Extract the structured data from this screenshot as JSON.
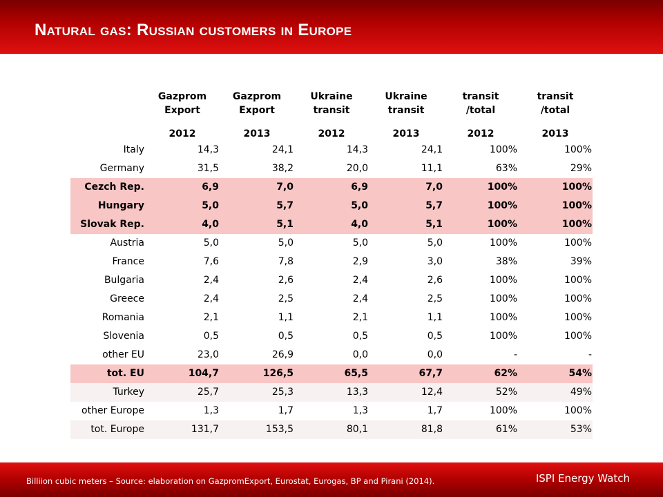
{
  "title": "Natural gas: Russian customers in Europe",
  "table": {
    "headers": [
      "Gazprom\nExport",
      "Gazprom\nExport",
      "Ukraine\ntransit",
      "Ukraine\ntransit",
      "transit\n/total",
      "transit\n/total"
    ],
    "years": [
      "2012",
      "2013",
      "2012",
      "2013",
      "2012",
      "2013"
    ],
    "rows": [
      {
        "label": "Italy",
        "values": [
          "14,3",
          "24,1",
          "14,3",
          "24,1",
          "100%",
          "100%"
        ],
        "style": "normal"
      },
      {
        "label": "Germany",
        "values": [
          "31,5",
          "38,2",
          "20,0",
          "11,1",
          "63%",
          "29%"
        ],
        "style": "normal"
      },
      {
        "label": "Cezch Rep.",
        "values": [
          "6,9",
          "7,0",
          "6,9",
          "7,0",
          "100%",
          "100%"
        ],
        "style": "highlight"
      },
      {
        "label": "Hungary",
        "values": [
          "5,0",
          "5,7",
          "5,0",
          "5,7",
          "100%",
          "100%"
        ],
        "style": "highlight"
      },
      {
        "label": "Slovak Rep.",
        "values": [
          "4,0",
          "5,1",
          "4,0",
          "5,1",
          "100%",
          "100%"
        ],
        "style": "highlight"
      },
      {
        "label": "Austria",
        "values": [
          "5,0",
          "5,0",
          "5,0",
          "5,0",
          "100%",
          "100%"
        ],
        "style": "normal"
      },
      {
        "label": "France",
        "values": [
          "7,6",
          "7,8",
          "2,9",
          "3,0",
          "38%",
          "39%"
        ],
        "style": "normal"
      },
      {
        "label": "Bulgaria",
        "values": [
          "2,4",
          "2,6",
          "2,4",
          "2,6",
          "100%",
          "100%"
        ],
        "style": "normal"
      },
      {
        "label": "Greece",
        "values": [
          "2,4",
          "2,5",
          "2,4",
          "2,5",
          "100%",
          "100%"
        ],
        "style": "normal"
      },
      {
        "label": "Romania",
        "values": [
          "2,1",
          "1,1",
          "2,1",
          "1,1",
          "100%",
          "100%"
        ],
        "style": "normal"
      },
      {
        "label": "Slovenia",
        "values": [
          "0,5",
          "0,5",
          "0,5",
          "0,5",
          "100%",
          "100%"
        ],
        "style": "normal"
      },
      {
        "label": "other EU",
        "values": [
          "23,0",
          "26,9",
          "0,0",
          "0,0",
          "-",
          "-"
        ],
        "style": "normal"
      },
      {
        "label": "tot. EU",
        "values": [
          "104,7",
          "126,5",
          "65,5",
          "67,7",
          "62%",
          "54%"
        ],
        "style": "highlight"
      },
      {
        "label": "Turkey",
        "values": [
          "25,7",
          "25,3",
          "13,3",
          "12,4",
          "52%",
          "49%"
        ],
        "style": "alt"
      },
      {
        "label": "other Europe",
        "values": [
          "1,3",
          "1,7",
          "1,3",
          "1,7",
          "100%",
          "100%"
        ],
        "style": "normal"
      },
      {
        "label": "tot. Europe",
        "values": [
          "131,7",
          "153,5",
          "80,1",
          "81,8",
          "61%",
          "53%"
        ],
        "style": "alt"
      }
    ]
  },
  "footer": {
    "source": "Billiion cubic meters – Source: elaboration on GazpromExport, Eurostat, Eurogas, BP and Pirani (2014).",
    "brand": "ISPI Energy Watch"
  },
  "colors": {
    "header_dark": "#7a0000",
    "header_light": "#e01010",
    "highlight_row": "#f9c6c6",
    "alt_row": "#f7f1f1"
  }
}
